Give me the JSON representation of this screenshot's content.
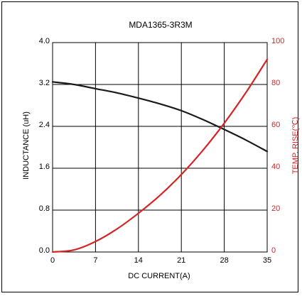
{
  "colors": {
    "inductance": "#1a1a1a",
    "temp_rise": "#d42424",
    "grid": "#000000"
  },
  "chart_data": {
    "type": "line",
    "title": "MDA1365-3R3M",
    "xlabel": "DC CURRENT(A)",
    "ylabel": "INDUCTANCE (uH)",
    "y2label": "TEMP. RISE(℃)",
    "xlim": [
      0,
      35
    ],
    "ylim": [
      0.0,
      4.0
    ],
    "y2lim": [
      0,
      100
    ],
    "x_ticks": [
      "0",
      "7",
      "14",
      "21",
      "28",
      "35"
    ],
    "y_ticks": [
      "0.0",
      "0.8",
      "1.6",
      "2.4",
      "3.2",
      "4.0"
    ],
    "y2_ticks": [
      "0",
      "20",
      "40",
      "60",
      "80",
      "100"
    ],
    "grid": true,
    "series": [
      {
        "axis": "left",
        "x": [
          0,
          3.5,
          7,
          10.5,
          14,
          17.5,
          21,
          24.5,
          28,
          31.5,
          35
        ],
        "y": [
          3.25,
          3.2,
          3.12,
          3.04,
          2.94,
          2.83,
          2.7,
          2.53,
          2.34,
          2.14,
          1.92
        ]
      },
      {
        "axis": "right",
        "x": [
          0,
          3.5,
          7,
          10.5,
          14,
          17.5,
          21,
          24.5,
          28,
          31.5,
          35
        ],
        "y": [
          0,
          1,
          5,
          11,
          18.5,
          27,
          37,
          48.5,
          61.5,
          76,
          92
        ]
      }
    ]
  }
}
